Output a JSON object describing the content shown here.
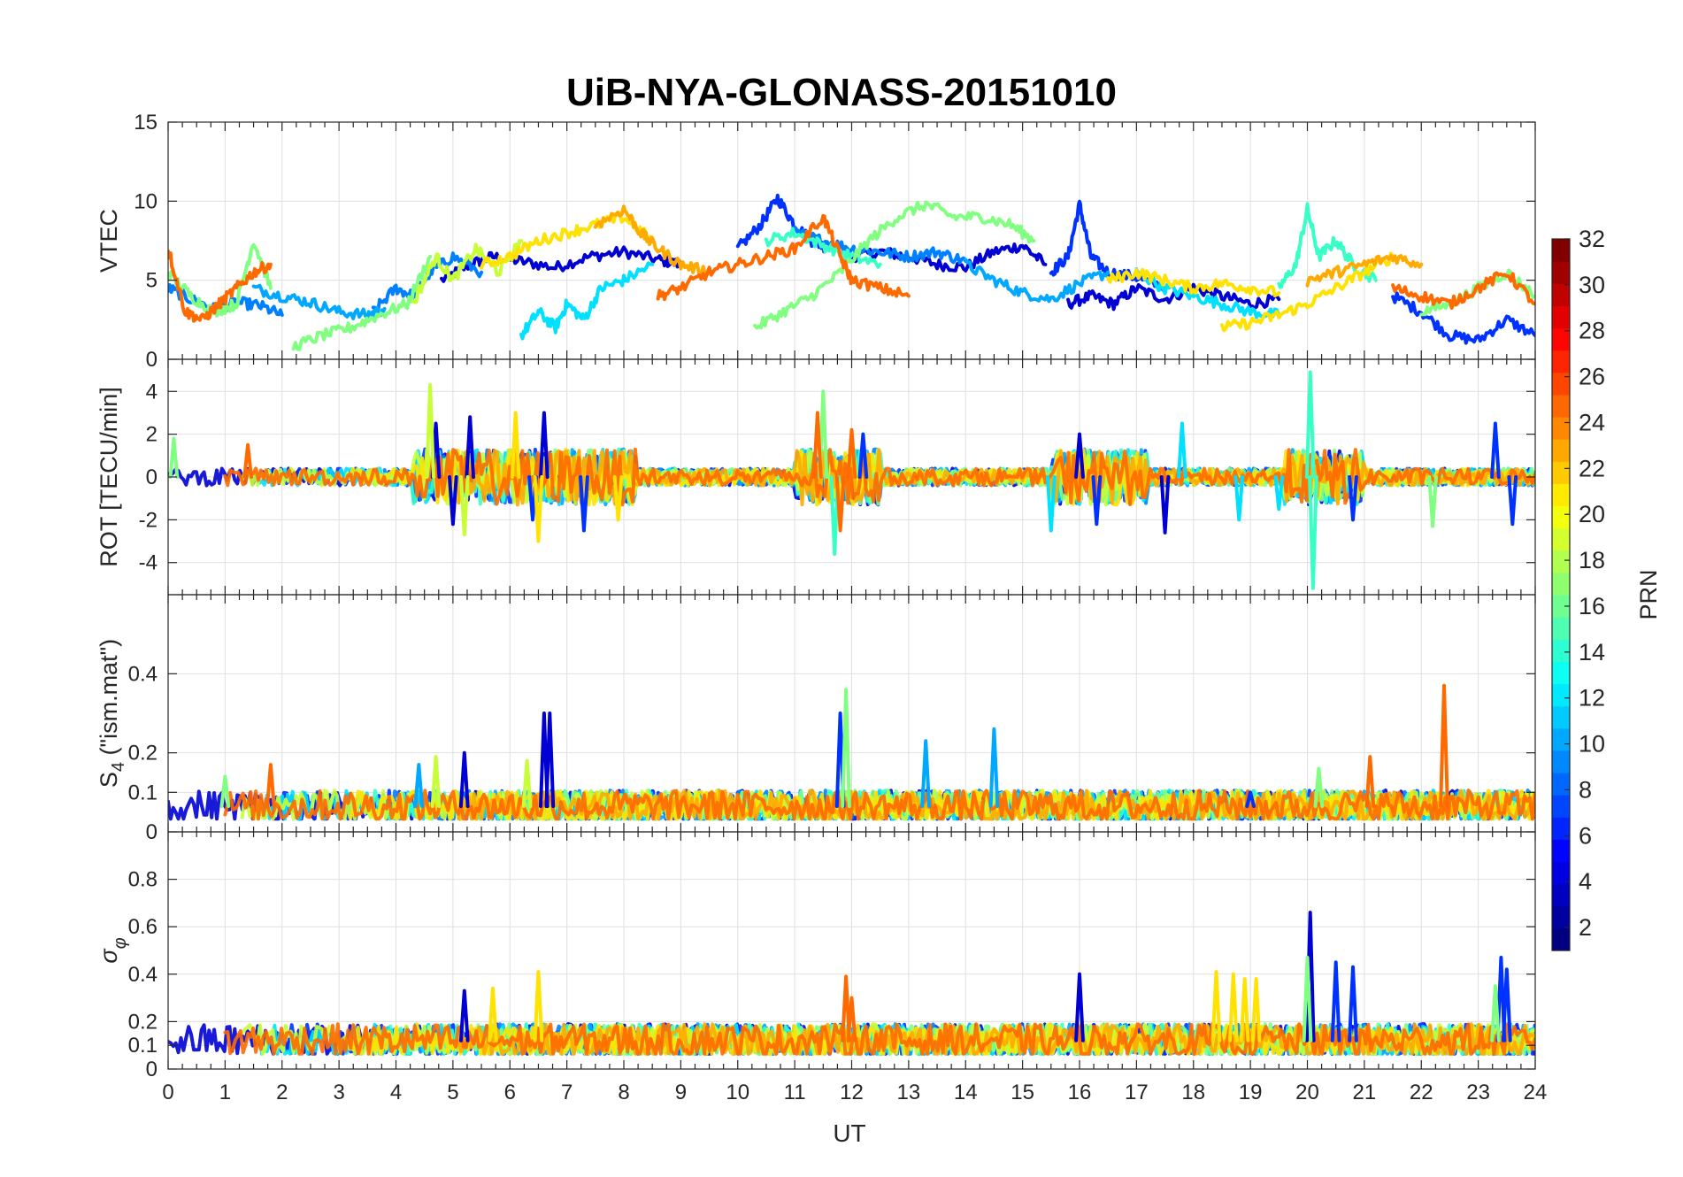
{
  "title": "UiB-NYA-GLONASS-20151010",
  "xlabel": "UT",
  "xticks": [
    "0",
    "1",
    "2",
    "3",
    "4",
    "5",
    "6",
    "7",
    "8",
    "9",
    "10",
    "11",
    "12",
    "13",
    "14",
    "15",
    "16",
    "17",
    "18",
    "19",
    "20",
    "21",
    "22",
    "23",
    "24"
  ],
  "colorbar": {
    "label": "PRN",
    "ticks": [
      "2",
      "4",
      "6",
      "8",
      "10",
      "12",
      "14",
      "16",
      "18",
      "20",
      "22",
      "24",
      "26",
      "28",
      "30",
      "32"
    ],
    "range": [
      1,
      32
    ],
    "colormap": "jet"
  },
  "chart_data": [
    {
      "type": "line",
      "ylabel": "VTEC",
      "xlim": [
        0,
        24
      ],
      "ylim": [
        0,
        15
      ],
      "yticks": [
        "0",
        "5",
        "10",
        "15"
      ],
      "series": [
        {
          "prn": 3,
          "color": "#0000d4",
          "x": [
            4.8,
            5.3,
            5.7,
            6.2,
            6.8,
            7.4,
            8.0,
            8.6,
            9.0
          ],
          "y": [
            5.0,
            6.0,
            6.5,
            6.2,
            5.8,
            6.5,
            6.8,
            6.3,
            6.0
          ]
        },
        {
          "prn": 3,
          "color": "#0000d4",
          "x": [
            12.0,
            12.5,
            13.0,
            13.5,
            14.0,
            14.5,
            15.0,
            15.4
          ],
          "y": [
            6.5,
            6.8,
            6.5,
            6.0,
            5.8,
            6.8,
            7.2,
            6.0
          ]
        },
        {
          "prn": 3,
          "color": "#0000d4",
          "x": [
            15.8,
            16.2,
            16.6,
            17.0,
            17.5,
            18.0,
            18.5,
            19.0,
            19.5
          ],
          "y": [
            3.5,
            4.0,
            3.5,
            4.5,
            3.8,
            4.5,
            4.0,
            3.5,
            3.8
          ]
        },
        {
          "prn": 5,
          "color": "#0032ff",
          "x": [
            10.0,
            10.4,
            10.7,
            11.0,
            11.3,
            11.6
          ],
          "y": [
            7.0,
            8.5,
            10.2,
            8.5,
            7.5,
            7.0
          ]
        },
        {
          "prn": 5,
          "color": "#0032ff",
          "x": [
            15.5,
            15.8,
            16.0,
            16.2,
            16.5,
            17.0,
            17.5
          ],
          "y": [
            5.5,
            6.5,
            9.8,
            6.5,
            5.5,
            5.2,
            4.5
          ]
        },
        {
          "prn": 5,
          "color": "#0032ff",
          "x": [
            21.5,
            22.0,
            22.5,
            23.0,
            23.5,
            24.0
          ],
          "y": [
            4.0,
            3.0,
            1.5,
            1.2,
            2.5,
            1.5
          ]
        },
        {
          "prn": 8,
          "color": "#0080ff",
          "x": [
            0.0,
            0.4,
            0.8,
            1.2,
            1.6,
            2.0
          ],
          "y": [
            4.5,
            3.8,
            3.2,
            3.6,
            3.4,
            2.8
          ]
        },
        {
          "prn": 8,
          "color": "#0080ff",
          "x": [
            3.6,
            4.0,
            4.3,
            4.6,
            5.0,
            5.5
          ],
          "y": [
            3.0,
            4.5,
            4.0,
            5.5,
            6.5,
            5.5
          ]
        },
        {
          "prn": 8,
          "color": "#0080ff",
          "x": [
            11.0,
            11.5,
            12.0,
            12.5,
            13.0,
            13.5,
            14.0
          ],
          "y": [
            8.0,
            7.5,
            7.0,
            6.8,
            6.5,
            6.8,
            6.2
          ]
        },
        {
          "prn": 10,
          "color": "#00a8ff",
          "x": [
            1.5,
            2.0,
            2.5,
            3.0,
            3.5,
            3.8
          ],
          "y": [
            4.5,
            4.0,
            3.6,
            3.0,
            2.8,
            3.2
          ]
        },
        {
          "prn": 10,
          "color": "#00a8ff",
          "x": [
            14.0,
            14.5,
            15.0,
            15.5,
            16.0,
            16.5
          ],
          "y": [
            6.0,
            5.0,
            4.2,
            3.8,
            4.8,
            5.5
          ]
        },
        {
          "prn": 12,
          "color": "#00e0ff",
          "x": [
            6.2,
            6.5,
            6.8,
            7.0,
            7.3,
            7.6,
            8.0,
            8.5
          ],
          "y": [
            1.5,
            3.0,
            2.0,
            3.5,
            2.5,
            4.5,
            5.0,
            6.0
          ]
        },
        {
          "prn": 12,
          "color": "#00e0ff",
          "x": [
            17.0,
            17.5,
            18.0,
            18.5,
            19.0,
            19.5
          ],
          "y": [
            5.5,
            4.5,
            4.0,
            3.5,
            3.0,
            2.8
          ]
        },
        {
          "prn": 14,
          "color": "#38ffc6",
          "x": [
            19.5,
            19.8,
            20.0,
            20.2,
            20.5,
            20.8,
            21.2
          ],
          "y": [
            4.5,
            6.0,
            9.5,
            6.5,
            7.5,
            6.0,
            5.0
          ]
        },
        {
          "prn": 14,
          "color": "#38ffc6",
          "x": [
            10.5,
            11.0,
            11.5,
            12.0,
            12.5
          ],
          "y": [
            7.5,
            8.0,
            7.2,
            6.5,
            6.0
          ]
        },
        {
          "prn": 16,
          "color": "#80ff80",
          "x": [
            0.0,
            0.4,
            0.8,
            1.2,
            1.5,
            1.8
          ],
          "y": [
            5.5,
            4.0,
            3.0,
            3.5,
            7.5,
            4.5
          ]
        },
        {
          "prn": 16,
          "color": "#80ff80",
          "x": [
            2.2,
            2.7,
            3.2,
            3.7,
            4.2,
            4.6
          ],
          "y": [
            0.8,
            1.5,
            2.0,
            2.8,
            3.5,
            6.5
          ]
        },
        {
          "prn": 16,
          "color": "#80ff80",
          "x": [
            10.3,
            10.8,
            11.3,
            11.8,
            12.3,
            12.8,
            13.3
          ],
          "y": [
            2.0,
            3.0,
            4.0,
            5.5,
            7.5,
            9.0,
            9.8
          ]
        },
        {
          "prn": 16,
          "color": "#80ff80",
          "x": [
            13.3,
            13.8,
            14.3,
            14.8,
            15.2
          ],
          "y": [
            9.8,
            9.0,
            9.0,
            8.5,
            7.5
          ]
        },
        {
          "prn": 16,
          "color": "#80ff80",
          "x": [
            22.0,
            22.5,
            23.0,
            23.5,
            24.0
          ],
          "y": [
            3.0,
            3.5,
            4.5,
            5.5,
            4.0
          ]
        },
        {
          "prn": 18,
          "color": "#c6ff38",
          "x": [
            4.3,
            4.7,
            5.0,
            5.4,
            5.8,
            6.2
          ],
          "y": [
            3.5,
            6.5,
            5.0,
            7.0,
            5.5,
            7.5
          ]
        },
        {
          "prn": 20,
          "color": "#ffe200",
          "x": [
            5.5,
            6.0,
            6.5,
            7.0,
            7.5,
            8.0,
            8.5
          ],
          "y": [
            6.0,
            6.5,
            7.5,
            8.0,
            8.5,
            9.0,
            7.5
          ]
        },
        {
          "prn": 20,
          "color": "#ffe200",
          "x": [
            16.5,
            17.0,
            17.5,
            18.0,
            18.5,
            19.0,
            19.5
          ],
          "y": [
            5.0,
            5.5,
            5.0,
            4.5,
            4.8,
            4.5,
            4.2
          ]
        },
        {
          "prn": 20,
          "color": "#ffe200",
          "x": [
            18.5,
            19.0,
            19.5,
            20.0,
            20.5,
            21.0,
            21.5
          ],
          "y": [
            2.0,
            2.3,
            2.8,
            3.5,
            4.5,
            5.5,
            6.5
          ]
        },
        {
          "prn": 22,
          "color": "#ffaa00",
          "x": [
            7.5,
            8.0,
            8.3,
            8.6,
            9.0,
            9.5
          ],
          "y": [
            8.5,
            9.5,
            8.0,
            7.0,
            6.0,
            5.5
          ]
        },
        {
          "prn": 22,
          "color": "#ffaa00",
          "x": [
            20.0,
            20.5,
            21.0,
            21.5,
            22.0
          ],
          "y": [
            5.0,
            5.5,
            6.0,
            6.5,
            6.0
          ]
        },
        {
          "prn": 24,
          "color": "#ff6a00",
          "x": [
            0.0,
            0.3,
            0.6,
            0.9,
            1.2,
            1.5,
            1.8
          ],
          "y": [
            7.0,
            3.0,
            2.5,
            3.5,
            4.5,
            5.5,
            6.0
          ]
        },
        {
          "prn": 24,
          "color": "#ff6a00",
          "x": [
            8.6,
            9.0,
            9.5,
            10.0,
            10.5,
            11.0,
            11.5,
            11.8,
            12.0,
            12.5,
            13.0
          ],
          "y": [
            4.0,
            4.5,
            5.5,
            6.0,
            6.5,
            7.0,
            9.0,
            6.5,
            5.0,
            4.5,
            4.0
          ]
        },
        {
          "prn": 24,
          "color": "#ff6a00",
          "x": [
            21.5,
            22.0,
            22.5,
            23.0,
            23.5,
            24.0
          ],
          "y": [
            4.5,
            4.0,
            3.5,
            4.5,
            5.5,
            3.5
          ]
        }
      ]
    },
    {
      "type": "line",
      "ylabel": "ROT [TECU/min]",
      "xlim": [
        0,
        24
      ],
      "ylim": [
        -5.5,
        5.5
      ],
      "yticks": [
        "-4",
        "-2",
        "0",
        "2",
        "4"
      ],
      "spikes": [
        {
          "color": "#0000d4",
          "x": [
            4.7,
            5.0,
            5.3,
            6.6,
            16.0,
            17.5
          ],
          "y": [
            2.5,
            -2.2,
            2.8,
            3.0,
            2.0,
            -2.6
          ]
        },
        {
          "color": "#0032ff",
          "x": [
            6.4,
            7.3,
            12.2,
            16.3,
            20.8,
            23.3,
            23.6
          ],
          "y": [
            -2.0,
            -2.5,
            2.0,
            -2.2,
            -2.0,
            2.5,
            -2.2
          ]
        },
        {
          "color": "#00e0ff",
          "x": [
            15.5,
            17.8,
            18.8,
            19.5
          ],
          "y": [
            -2.5,
            2.5,
            -2.0,
            -1.5
          ]
        },
        {
          "color": "#38ffc6",
          "x": [
            11.7,
            20.05,
            20.1
          ],
          "y": [
            -3.6,
            4.9,
            -5.2
          ]
        },
        {
          "color": "#80ff80",
          "x": [
            0.1,
            11.5,
            22.2
          ],
          "y": [
            1.8,
            4.0,
            -2.3
          ]
        },
        {
          "color": "#c6ff38",
          "x": [
            4.6,
            5.2
          ],
          "y": [
            4.3,
            -2.7
          ]
        },
        {
          "color": "#ffe200",
          "x": [
            6.1,
            6.5,
            7.9
          ],
          "y": [
            3.0,
            -3.0,
            -2.0
          ]
        },
        {
          "color": "#ff6a00",
          "x": [
            1.4,
            11.4,
            11.8,
            12.0
          ],
          "y": [
            1.5,
            3.0,
            -2.5,
            2.2
          ]
        }
      ]
    },
    {
      "type": "line",
      "ylabel": "S4 (\"ism.mat\")",
      "xlim": [
        0,
        24
      ],
      "ylim": [
        0,
        0.6
      ],
      "yticks": [
        "0",
        "0.1",
        "0.2",
        "0.4"
      ],
      "spikes": [
        {
          "color": "#0000d4",
          "x": [
            6.6,
            6.7,
            5.2
          ],
          "y": [
            0.3,
            0.3,
            0.2
          ]
        },
        {
          "color": "#0032ff",
          "x": [
            11.8,
            19.0
          ],
          "y": [
            0.3,
            0.1
          ]
        },
        {
          "color": "#00a8ff",
          "x": [
            13.3,
            14.5,
            4.4
          ],
          "y": [
            0.23,
            0.26,
            0.17
          ]
        },
        {
          "color": "#80ff80",
          "x": [
            11.9,
            1.0,
            20.2
          ],
          "y": [
            0.36,
            0.14,
            0.16
          ]
        },
        {
          "color": "#c6ff38",
          "x": [
            4.7,
            6.3
          ],
          "y": [
            0.19,
            0.18
          ]
        },
        {
          "color": "#ff6a00",
          "x": [
            22.4,
            21.1,
            1.8
          ],
          "y": [
            0.37,
            0.19,
            0.17
          ]
        }
      ]
    },
    {
      "type": "line",
      "ylabel": "σφ",
      "xlim": [
        0,
        24
      ],
      "ylim": [
        0,
        1
      ],
      "yticks": [
        "0",
        "0.1",
        "0.2",
        "0.4",
        "0.6",
        "0.8"
      ],
      "spikes": [
        {
          "color": "#0000d4",
          "x": [
            5.2,
            16.0,
            20.05
          ],
          "y": [
            0.33,
            0.4,
            0.66
          ]
        },
        {
          "color": "#0032ff",
          "x": [
            20.5,
            20.8,
            23.4,
            23.5
          ],
          "y": [
            0.45,
            0.43,
            0.47,
            0.42
          ]
        },
        {
          "color": "#ffe200",
          "x": [
            6.5,
            18.4,
            18.7,
            18.9,
            19.1,
            5.7
          ],
          "y": [
            0.41,
            0.41,
            0.4,
            0.38,
            0.38,
            0.34
          ]
        },
        {
          "color": "#ff6a00",
          "x": [
            11.9,
            12.0
          ],
          "y": [
            0.39,
            0.3
          ]
        },
        {
          "color": "#80ff80",
          "x": [
            20.0,
            23.3
          ],
          "y": [
            0.47,
            0.35
          ]
        }
      ]
    }
  ]
}
